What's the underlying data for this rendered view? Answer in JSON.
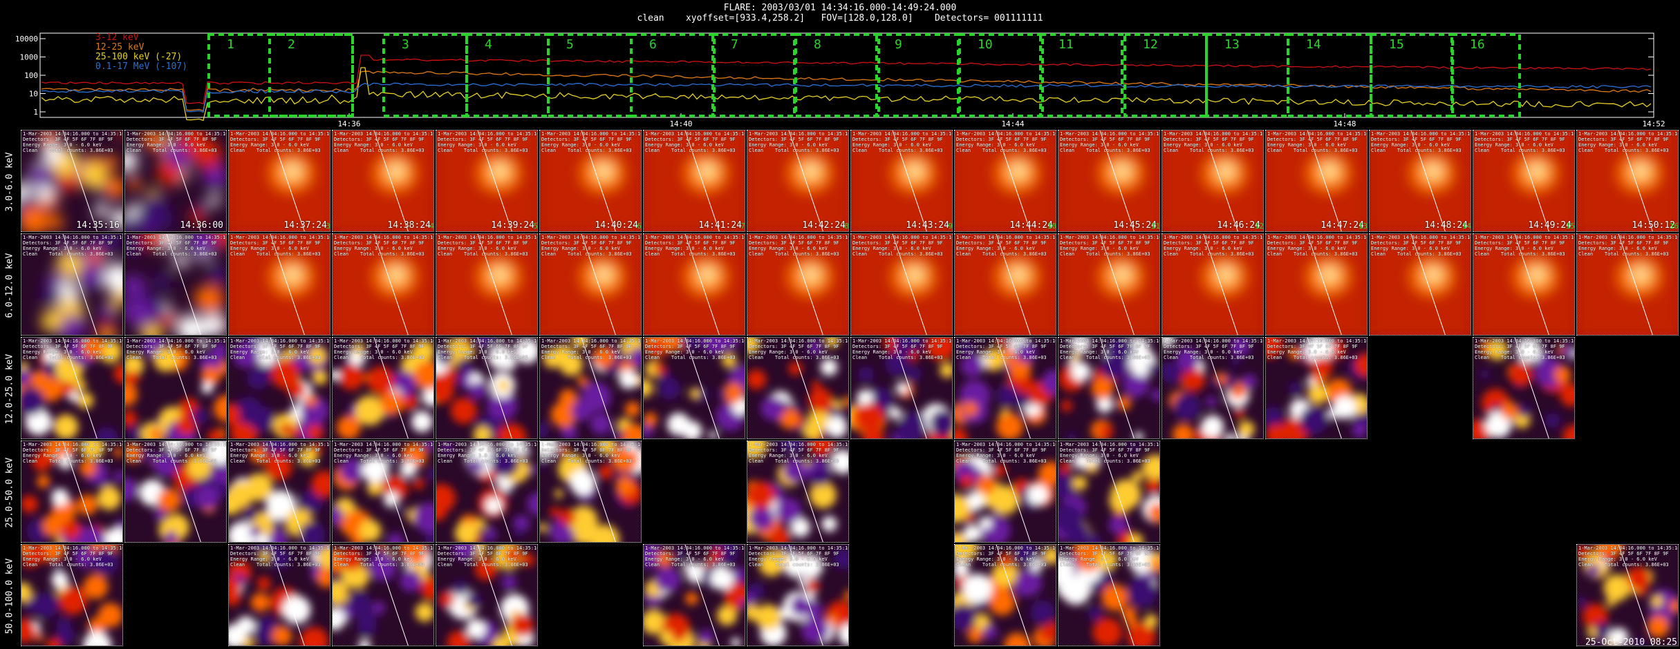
{
  "header": {
    "line1": "FLARE: 2003/03/01 14:34:16.000-14:49:24.000",
    "line2": "clean    xyoffset=[933.4,258.2]   FOV=[128.0,128.0]    Detectors= 001111111"
  },
  "lightcurve": {
    "y_ticks": [
      "10000",
      "1000",
      "100",
      "10",
      "1"
    ],
    "x_ticks": [
      "14:36",
      "14:40",
      "14:44",
      "14:48",
      "14:52"
    ],
    "legend": [
      {
        "label": "3-12 keV",
        "color": "#d01010"
      },
      {
        "label": "12-25 keV",
        "color": "#e07a10"
      },
      {
        "label": "25-100 keV (-27)",
        "color": "#e8d020"
      },
      {
        "label": "0.1-17 MeV (-107)",
        "color": "#2a70d8"
      }
    ],
    "interval_labels": [
      "1",
      "2",
      "3",
      "4",
      "5",
      "6",
      "7",
      "8",
      "9",
      "10",
      "11",
      "12",
      "13",
      "14",
      "15",
      "16"
    ],
    "box_color": "#2bd42b"
  },
  "grid": {
    "row_labels": [
      "3.0-6.0 keV",
      "6.0-12.0 keV",
      "12.0-25.0 keV",
      "25.0-50.0 keV",
      "50.0-100.0 keV"
    ],
    "times": [
      "14:35:16",
      "14:36:00",
      "14:37:24",
      "14:38:24",
      "14:39:24",
      "14:40:24",
      "14:41:24",
      "14:42:24",
      "14:43:24",
      "14:44:24",
      "14:45:24",
      "14:46:24",
      "14:47:24",
      "14:48:24",
      "14:49:24",
      "14:50:12"
    ],
    "panel_indices": [
      "1",
      "2",
      "3",
      "4",
      "5",
      "6",
      "7",
      "8",
      "9",
      "10",
      "11",
      "12",
      "13",
      "14",
      "15",
      "16"
    ],
    "panel_caption": "1-Mar-2003 14:34:16.000 to 14:35:16\nDetectors: 3F 4F 5F 6F 7F 8F 9F\nEnergy Range: 3.0 - 6.0 keV\nClean    Total counts: 3.86E+03",
    "presence": [
      [
        1,
        1,
        1,
        1,
        1,
        1,
        1,
        1,
        1,
        1,
        1,
        1,
        1,
        1,
        1,
        1
      ],
      [
        1,
        1,
        1,
        1,
        1,
        1,
        1,
        1,
        1,
        1,
        1,
        1,
        1,
        1,
        1,
        1
      ],
      [
        1,
        1,
        1,
        1,
        1,
        1,
        1,
        1,
        1,
        1,
        1,
        1,
        1,
        0,
        1,
        0
      ],
      [
        1,
        1,
        1,
        1,
        1,
        1,
        0,
        1,
        0,
        1,
        1,
        0,
        0,
        0,
        0,
        0
      ],
      [
        1,
        0,
        1,
        1,
        1,
        0,
        1,
        1,
        0,
        1,
        1,
        0,
        0,
        0,
        0,
        1
      ]
    ]
  },
  "footer": {
    "timestamp": "25-Oct-2010 08:25"
  }
}
